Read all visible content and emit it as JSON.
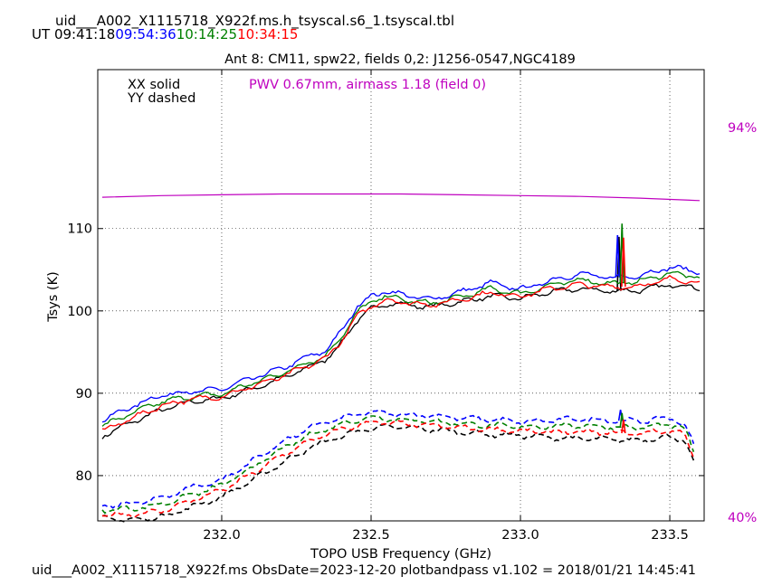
{
  "header": {
    "table_name": "uid___A002_X1115718_X922f.ms.h_tsyscal.s6_1.tsyscal.tbl",
    "ut_label": "UT",
    "times": [
      {
        "text": "09:41:18",
        "color": "#000000"
      },
      {
        "text": "09:54:36",
        "color": "#0000ff"
      },
      {
        "text": "10:14:25",
        "color": "#008000"
      },
      {
        "text": "10:34:15",
        "color": "#ff0000"
      }
    ]
  },
  "footer": {
    "text": "uid___A002_X1115718_X922f.ms  ObsDate=2023-12-20   plotbandpass v1.102 = 2018/01/21 14:45:41"
  },
  "chart_data": {
    "type": "line",
    "title": "Ant 8: CM11,  spw22,  fields 0,2: J1256-0547,NGC4189",
    "xlabel": "TOPO USB Frequency (GHz)",
    "ylabel": "Tsys (K)",
    "xlim": [
      231.585,
      233.615
    ],
    "ylim": [
      74.5,
      129.3
    ],
    "xticks": [
      232.0,
      232.5,
      233.0,
      233.5
    ],
    "xtick_labels": [
      "232.0",
      "232.5",
      "233.0",
      "233.5"
    ],
    "yticks": [
      80,
      90,
      100,
      110
    ],
    "ytick_labels": [
      "80",
      "90",
      "100",
      "110"
    ],
    "grid": true,
    "legend": {
      "entries": [
        "XX solid",
        "YY dashed"
      ],
      "placement": "top-left"
    },
    "annotation": {
      "text": "PWV 0.67mm, airmass 1.18 (field 0)",
      "color": "#bf00bf"
    },
    "transmission": {
      "color": "#bf00bf",
      "right_axis_top_label": "94%",
      "right_axis_bottom_label": "40%",
      "frequencies": [
        231.6,
        231.8,
        232.0,
        232.2,
        232.4,
        232.6,
        232.8,
        233.0,
        233.2,
        233.4,
        233.6
      ],
      "tsys_level": [
        113.8,
        114.0,
        114.1,
        114.2,
        114.2,
        114.2,
        114.1,
        114.0,
        113.9,
        113.7,
        113.4
      ]
    },
    "series": [
      {
        "name": "09:41:18 XX",
        "color": "#000000",
        "pol": "XX",
        "x": [
          231.6,
          231.7,
          231.8,
          231.9,
          232.0,
          232.1,
          232.2,
          232.3,
          232.35,
          232.4,
          232.45,
          232.5,
          232.55,
          232.6,
          232.7,
          232.8,
          232.9,
          233.0,
          233.1,
          233.2,
          233.3,
          233.4,
          233.5,
          233.6
        ],
        "y": [
          84.8,
          86.5,
          88.0,
          89.0,
          89.4,
          90.5,
          91.8,
          93.3,
          94.2,
          96.0,
          98.8,
          100.2,
          100.9,
          100.8,
          100.5,
          101.1,
          101.8,
          101.5,
          102.3,
          102.7,
          102.4,
          102.5,
          103.2,
          102.8
        ],
        "spikes": [
          {
            "x": 233.33,
            "y": 109.0
          }
        ]
      },
      {
        "name": "09:54:36 XX",
        "color": "#0000ff",
        "pol": "XX",
        "x": [
          231.6,
          231.7,
          231.8,
          231.9,
          232.0,
          232.1,
          232.2,
          232.3,
          232.35,
          232.4,
          232.45,
          232.5,
          232.55,
          232.6,
          232.7,
          232.8,
          232.9,
          233.0,
          233.1,
          233.2,
          233.3,
          233.4,
          233.5,
          233.6
        ],
        "y": [
          86.7,
          88.4,
          89.8,
          90.2,
          90.5,
          91.8,
          93.0,
          94.6,
          95.2,
          97.5,
          100.4,
          101.8,
          102.4,
          102.0,
          101.4,
          102.3,
          103.4,
          102.6,
          103.7,
          104.5,
          104.0,
          104.3,
          105.3,
          104.8
        ],
        "spikes": [
          {
            "x": 233.325,
            "y": 109.2
          }
        ]
      },
      {
        "name": "10:14:25 XX",
        "color": "#008000",
        "pol": "XX",
        "x": [
          231.6,
          231.7,
          231.8,
          231.9,
          232.0,
          232.1,
          232.2,
          232.3,
          232.35,
          232.4,
          232.45,
          232.5,
          232.55,
          232.6,
          232.7,
          232.8,
          232.9,
          233.0,
          233.1,
          233.2,
          233.3,
          233.4,
          233.5,
          233.6
        ],
        "y": [
          86.0,
          87.6,
          89.0,
          89.6,
          89.9,
          91.2,
          92.4,
          93.9,
          94.6,
          96.8,
          99.7,
          101.1,
          101.8,
          101.4,
          100.9,
          101.7,
          102.7,
          102.1,
          103.1,
          103.8,
          103.3,
          103.6,
          104.6,
          104.1
        ],
        "spikes": [
          {
            "x": 233.34,
            "y": 110.6
          }
        ]
      },
      {
        "name": "10:34:15 XX",
        "color": "#ff0000",
        "pol": "XX",
        "x": [
          231.6,
          231.7,
          231.8,
          231.9,
          232.0,
          232.1,
          232.2,
          232.3,
          232.35,
          232.4,
          232.45,
          232.5,
          232.55,
          232.6,
          232.7,
          232.8,
          232.9,
          233.0,
          233.1,
          233.2,
          233.3,
          233.4,
          233.5,
          233.6
        ],
        "y": [
          85.4,
          87.0,
          88.5,
          89.3,
          89.6,
          90.8,
          92.0,
          93.5,
          94.3,
          96.3,
          99.2,
          100.6,
          101.3,
          101.1,
          100.7,
          101.4,
          102.2,
          101.8,
          102.7,
          103.2,
          102.9,
          103.0,
          103.9,
          103.5
        ],
        "spikes": [
          {
            "x": 233.345,
            "y": 108.9
          }
        ]
      },
      {
        "name": "09:41:18 YY",
        "color": "#000000",
        "pol": "YY",
        "x": [
          231.6,
          231.7,
          231.8,
          231.9,
          232.0,
          232.1,
          232.2,
          232.3,
          232.4,
          232.5,
          232.6,
          232.7,
          232.8,
          232.9,
          233.0,
          233.1,
          233.2,
          233.3,
          233.4,
          233.5,
          233.55,
          233.58
        ],
        "y": [
          74.8,
          74.6,
          75.0,
          76.2,
          77.4,
          79.4,
          81.5,
          83.5,
          84.8,
          85.8,
          85.9,
          85.6,
          85.3,
          85.0,
          84.9,
          84.6,
          84.5,
          84.4,
          84.3,
          84.7,
          84.3,
          81.5
        ],
        "spikes": []
      },
      {
        "name": "09:54:36 YY",
        "color": "#0000ff",
        "pol": "YY",
        "x": [
          231.6,
          231.7,
          231.8,
          231.9,
          232.0,
          232.1,
          232.2,
          232.3,
          232.4,
          232.5,
          232.6,
          232.7,
          232.8,
          232.9,
          233.0,
          233.1,
          233.2,
          233.3,
          233.4,
          233.5,
          233.55,
          233.58
        ],
        "y": [
          76.3,
          76.6,
          77.3,
          78.6,
          79.4,
          81.7,
          84.0,
          85.9,
          87.0,
          87.7,
          87.4,
          87.3,
          87.0,
          86.8,
          86.5,
          86.7,
          86.9,
          86.7,
          86.6,
          87.0,
          86.3,
          83.6
        ],
        "spikes": [
          {
            "x": 233.335,
            "y": 88.0
          }
        ]
      },
      {
        "name": "10:14:25 YY",
        "color": "#008000",
        "pol": "YY",
        "x": [
          231.6,
          231.7,
          231.8,
          231.9,
          232.0,
          232.1,
          232.2,
          232.3,
          232.4,
          232.5,
          232.6,
          232.7,
          232.8,
          232.9,
          233.0,
          233.1,
          233.2,
          233.3,
          233.4,
          233.5,
          233.55,
          233.58
        ],
        "y": [
          75.8,
          76.0,
          76.5,
          77.7,
          78.8,
          80.9,
          83.2,
          85.0,
          86.3,
          87.1,
          86.8,
          86.6,
          86.3,
          86.1,
          85.9,
          86.0,
          86.1,
          85.9,
          85.8,
          86.2,
          85.7,
          82.8
        ],
        "spikes": [
          {
            "x": 233.34,
            "y": 87.6
          }
        ]
      },
      {
        "name": "10:34:15 YY",
        "color": "#ff0000",
        "pol": "YY",
        "x": [
          231.6,
          231.7,
          231.8,
          231.9,
          232.0,
          232.1,
          232.2,
          232.3,
          232.4,
          232.5,
          232.6,
          232.7,
          232.8,
          232.9,
          233.0,
          233.1,
          233.2,
          233.3,
          233.4,
          233.5,
          233.55,
          233.58
        ],
        "y": [
          75.2,
          75.3,
          75.7,
          77.0,
          78.2,
          80.2,
          82.4,
          84.3,
          85.6,
          86.5,
          86.3,
          86.1,
          85.8,
          85.6,
          85.4,
          85.3,
          85.3,
          85.2,
          85.1,
          85.5,
          85.0,
          82.2
        ],
        "spikes": [
          {
            "x": 233.345,
            "y": 86.8
          }
        ]
      }
    ]
  }
}
